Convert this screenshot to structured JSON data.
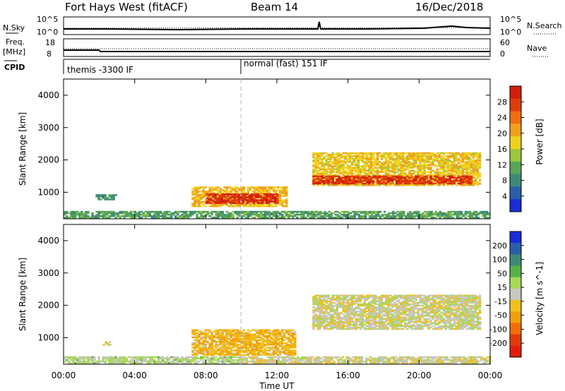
{
  "header": {
    "station": "Fort Hays West (fitACF)",
    "beam": "Beam 14",
    "date": "16/Dec/2018"
  },
  "strip_labels": {
    "nsky": "N.Sky",
    "freq": "Freq.",
    "freq_unit": "[MHz]",
    "cpid": "CPID",
    "nsearch": "N.Search",
    "nave": "Nave",
    "noise_top": "10^5",
    "noise_bottom": "10^0",
    "noise_top_right": "10^5",
    "noise_bottom_right": "10^0",
    "freq_top": "18",
    "freq_bottom": "8",
    "nave_top": "60",
    "nave_bottom": "0"
  },
  "cpid_segments": [
    {
      "label": "themis -3300 IF",
      "start_hour": 0
    },
    {
      "label": "normal (fast) 151 IF",
      "start_hour": 10
    }
  ],
  "colors": {
    "power_scale": [
      "#1a2dd6",
      "#2a5fa8",
      "#3c8a78",
      "#5aa55a",
      "#9ec83c",
      "#f0d21e",
      "#f0a01e",
      "#f06e14",
      "#e03c0a",
      "#d21e0a"
    ],
    "velocity_scale": [
      "#1a2dd6",
      "#2a5fa8",
      "#3c8a78",
      "#58b04a",
      "#a8d858",
      "#c8c8c0",
      "#f0c01e",
      "#f0a00a",
      "#f06e0a",
      "#e03c0a",
      "#e01e0a"
    ]
  },
  "chart_data": [
    {
      "type": "heatmap",
      "panel": "power",
      "ylabel": "Slant Range [km]",
      "xlim": [
        0,
        24
      ],
      "ylim": [
        180,
        4500
      ],
      "yticks": [
        "1000",
        "2000",
        "3000",
        "4000"
      ],
      "colorbar_label": "Power [dB]",
      "colorbar_ticks": [
        "28",
        "24",
        "20",
        "16",
        "12",
        "8",
        "4"
      ],
      "colorbar_range": [
        0,
        30
      ],
      "regions": [
        {
          "name": "ground clutter",
          "t0": 0.0,
          "t1": 24.0,
          "r0": 200,
          "r1": 420,
          "value": 10
        },
        {
          "name": "evening echo band",
          "t0": 7.2,
          "t1": 12.5,
          "r0": 550,
          "r1": 1150,
          "value": 18
        },
        {
          "name": "strong core",
          "t0": 8.0,
          "t1": 12.0,
          "r0": 650,
          "r1": 950,
          "value": 27
        },
        {
          "name": "morning patch",
          "t0": 1.8,
          "t1": 3.0,
          "r0": 760,
          "r1": 900,
          "value": 8
        },
        {
          "name": "far band",
          "t0": 14.0,
          "t1": 23.4,
          "r0": 1200,
          "r1": 2200,
          "value": 17
        },
        {
          "name": "far band inner edge",
          "t0": 14.0,
          "t1": 23.0,
          "r0": 1250,
          "r1": 1500,
          "value": 26
        }
      ]
    },
    {
      "type": "heatmap",
      "panel": "velocity",
      "ylabel": "Slant Range [km]",
      "xlabel": "Time UT",
      "xlim": [
        0,
        24
      ],
      "xticks": [
        "00:00",
        "04:00",
        "08:00",
        "12:00",
        "16:00",
        "20:00",
        "00:00"
      ],
      "ylim": [
        180,
        4500
      ],
      "yticks": [
        "1000",
        "2000",
        "3000",
        "4000"
      ],
      "colorbar_label": "Velocity [m s^-1]",
      "colorbar_ticks": [
        "200",
        "100",
        "50",
        "15",
        "-15",
        "-50",
        "-100",
        "-200"
      ],
      "colorbar_range": [
        -250,
        250
      ],
      "regions": [
        {
          "name": "ground scatter low",
          "t0": 0.0,
          "t1": 10.0,
          "r0": 200,
          "r1": 420,
          "value": 30
        },
        {
          "name": "ground scatter",
          "t0": 10.0,
          "t1": 24.0,
          "r0": 200,
          "r1": 420,
          "value": 0
        },
        {
          "name": "evening echo band",
          "t0": 7.2,
          "t1": 13.0,
          "r0": 450,
          "r1": 1250,
          "value": -60
        },
        {
          "name": "far band",
          "t0": 14.0,
          "t1": 23.4,
          "r0": 1250,
          "r1": 2300,
          "value": 0
        },
        {
          "name": "small patch",
          "t0": 2.2,
          "t1": 2.6,
          "r0": 760,
          "r1": 860,
          "value": 0
        }
      ]
    }
  ]
}
